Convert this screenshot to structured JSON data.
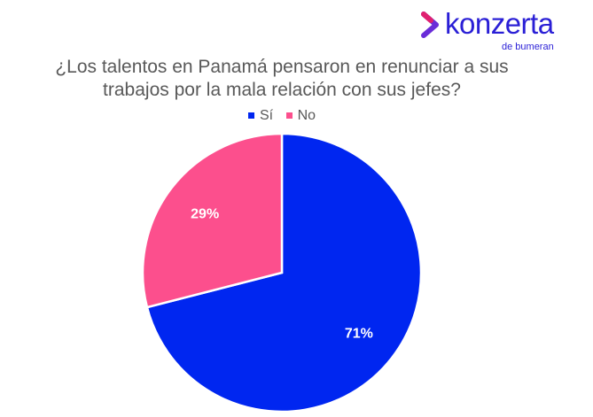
{
  "logo": {
    "brand": "konzerta",
    "sub": "de bumeran"
  },
  "chart_data": {
    "type": "pie",
    "title": "¿Los talentos en Panamá pensaron en renunciar a sus trabajos por la mala relación con sus jefes?",
    "title_line1": "¿Los talentos en Panamá pensaron en renunciar a sus",
    "title_line2": "trabajos por la mala relación con sus jefes?",
    "legend_position": "top",
    "slices": [
      {
        "label": "Sí",
        "value": 71,
        "display": "71%",
        "color": "#0026f0"
      },
      {
        "label": "No",
        "value": 29,
        "display": "29%",
        "color": "#fc4f8d"
      }
    ]
  }
}
